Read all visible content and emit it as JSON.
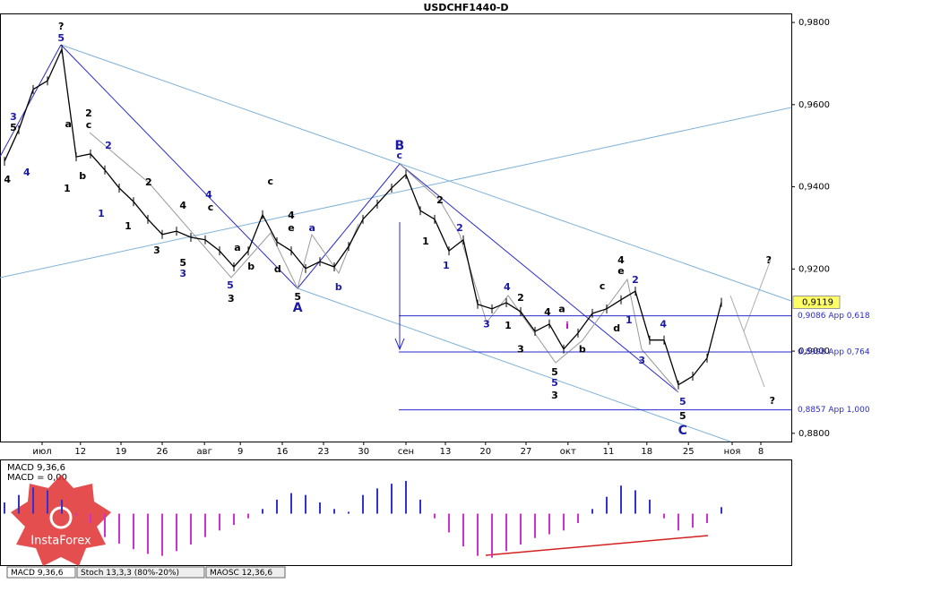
{
  "chart_data": [
    {
      "type": "line",
      "title": "USDCHF1440-D",
      "color": "#000000",
      "x": [
        0,
        2,
        4,
        6,
        8,
        10,
        12,
        14,
        16,
        18,
        20,
        22,
        24,
        26,
        28,
        30,
        32,
        34,
        36,
        38,
        40,
        42,
        44,
        46,
        48,
        50,
        52,
        54,
        56,
        58,
        60,
        62,
        64,
        66,
        68,
        70,
        72,
        74,
        76,
        78,
        80,
        82,
        84,
        86,
        88,
        90,
        92,
        94,
        96,
        98,
        100
      ],
      "values": [
        0.9462,
        0.9539,
        0.9637,
        0.9658,
        0.9735,
        0.9473,
        0.948,
        0.9441,
        0.9397,
        0.9364,
        0.9321,
        0.9284,
        0.9292,
        0.9277,
        0.9271,
        0.9244,
        0.9205,
        0.9244,
        0.9332,
        0.9266,
        0.9244,
        0.9201,
        0.9218,
        0.9205,
        0.9255,
        0.9321,
        0.9358,
        0.9397,
        0.943,
        0.9342,
        0.9321,
        0.9244,
        0.9271,
        0.9114,
        0.9103,
        0.9118,
        0.9096,
        0.9048,
        0.9066,
        0.9005,
        0.9044,
        0.9092,
        0.9103,
        0.9125,
        0.9146,
        0.9027,
        0.9027,
        0.8918,
        0.8939,
        0.8983,
        0.9119
      ],
      "xlim": [
        -0.625,
        109.75
      ],
      "ylim": [
        0.878,
        0.9822
      ],
      "xticks": [
        {
          "value": 5.25,
          "label": "июл"
        },
        {
          "value": 10.6,
          "label": "12"
        },
        {
          "value": 16.25,
          "label": "19"
        },
        {
          "value": 22,
          "label": "26"
        },
        {
          "value": 27.9,
          "label": "авг"
        },
        {
          "value": 32.9,
          "label": "9"
        },
        {
          "value": 38.75,
          "label": "16"
        },
        {
          "value": 44.5,
          "label": "23"
        },
        {
          "value": 50.1,
          "label": "30"
        },
        {
          "value": 56,
          "label": "сен"
        },
        {
          "value": 61.5,
          "label": "13"
        },
        {
          "value": 67.1,
          "label": "20"
        },
        {
          "value": 72.75,
          "label": "27"
        },
        {
          "value": 78.6,
          "label": "окт"
        },
        {
          "value": 84.25,
          "label": "11"
        },
        {
          "value": 89.6,
          "label": "18"
        },
        {
          "value": 95.4,
          "label": "25"
        },
        {
          "value": 101.5,
          "label": "ноя"
        },
        {
          "value": 105.5,
          "label": "8"
        }
      ],
      "yticks": [
        {
          "value": 0.98,
          "label": "0,9800"
        },
        {
          "value": 0.96,
          "label": "0,9600"
        },
        {
          "value": 0.94,
          "label": "0,9400"
        },
        {
          "value": 0.92,
          "label": "0,9200"
        },
        {
          "value": 0.9,
          "label": "0,9000"
        },
        {
          "value": 0.88,
          "label": "0,8800"
        }
      ],
      "last_price": {
        "value": 0.9119,
        "label": "0,9119"
      },
      "levels": [
        {
          "x": 55,
          "value": 0.9086,
          "label": "0,9086 App 0,618"
        },
        {
          "x": 55,
          "value": 0.8998,
          "label": "0,8998 App 0,764"
        },
        {
          "x": 55,
          "value": 0.8857,
          "label": "0,8857 App 1,000"
        }
      ],
      "annotations": [
        {
          "text": "?",
          "x": 7.9,
          "y": 0.9789,
          "color": "#000000"
        },
        {
          "text": "5",
          "x": 7.9,
          "y": 0.9761,
          "color": "#1a1aa6"
        },
        {
          "text": "3",
          "x": 1.25,
          "y": 0.9569,
          "color": "#1a1aa6"
        },
        {
          "text": "5",
          "x": 1.25,
          "y": 0.9543,
          "color": "#000000"
        },
        {
          "text": "4",
          "x": 0.4,
          "y": 0.9417,
          "color": "#000000"
        },
        {
          "text": "4",
          "x": 3.1,
          "y": 0.9434,
          "color": "#1a1aa6"
        },
        {
          "text": "2",
          "x": 11.75,
          "y": 0.9578,
          "color": "#000000"
        },
        {
          "text": "c",
          "x": 11.75,
          "y": 0.9549,
          "color": "#000000"
        },
        {
          "text": "a",
          "x": 8.9,
          "y": 0.9552,
          "color": "#000000"
        },
        {
          "text": "2",
          "x": 14.5,
          "y": 0.9499,
          "color": "#1a1aa6"
        },
        {
          "text": "b",
          "x": 10.9,
          "y": 0.9425,
          "color": "#000000"
        },
        {
          "text": "1",
          "x": 8.75,
          "y": 0.9395,
          "color": "#000000"
        },
        {
          "text": "1",
          "x": 13.5,
          "y": 0.9334,
          "color": "#1a1aa6"
        },
        {
          "text": "2",
          "x": 20.1,
          "y": 0.941,
          "color": "#000000"
        },
        {
          "text": "1",
          "x": 17.25,
          "y": 0.9303,
          "color": "#000000"
        },
        {
          "text": "4",
          "x": 24.9,
          "y": 0.9353,
          "color": "#000000"
        },
        {
          "text": "4",
          "x": 28.5,
          "y": 0.9379,
          "color": "#1a1aa6"
        },
        {
          "text": "c",
          "x": 28.75,
          "y": 0.9349,
          "color": "#000000"
        },
        {
          "text": "3",
          "x": 21.25,
          "y": 0.9244,
          "color": "#000000"
        },
        {
          "text": "5",
          "x": 24.9,
          "y": 0.9214,
          "color": "#000000"
        },
        {
          "text": "3",
          "x": 24.9,
          "y": 0.9188,
          "color": "#1a1aa6"
        },
        {
          "text": "a",
          "x": 32.5,
          "y": 0.9251,
          "color": "#000000"
        },
        {
          "text": "b",
          "x": 34.4,
          "y": 0.9205,
          "color": "#000000"
        },
        {
          "text": "5",
          "x": 31.5,
          "y": 0.9159,
          "color": "#1a1aa6"
        },
        {
          "text": "3",
          "x": 31.6,
          "y": 0.9127,
          "color": "#000000"
        },
        {
          "text": "c",
          "x": 37.1,
          "y": 0.9412,
          "color": "#000000"
        },
        {
          "text": "4",
          "x": 40,
          "y": 0.9329,
          "color": "#000000"
        },
        {
          "text": "e",
          "x": 40,
          "y": 0.9299,
          "color": "#000000"
        },
        {
          "text": "a",
          "x": 42.9,
          "y": 0.9299,
          "color": "#1a1aa6"
        },
        {
          "text": "d",
          "x": 38.1,
          "y": 0.9199,
          "color": "#000000"
        },
        {
          "text": "5",
          "x": 40.9,
          "y": 0.9131,
          "color": "#000000"
        },
        {
          "text": "A",
          "x": 40.9,
          "y": 0.9105,
          "color": "#1a1aa6"
        },
        {
          "text": "b",
          "x": 46.6,
          "y": 0.9155,
          "color": "#1a1aa6"
        },
        {
          "text": "B",
          "x": 55.1,
          "y": 0.9499,
          "color": "#1a1aa6"
        },
        {
          "text": "c",
          "x": 55.1,
          "y": 0.9475,
          "color": "#1a1aa6"
        },
        {
          "text": "2",
          "x": 60.75,
          "y": 0.9366,
          "color": "#000000"
        },
        {
          "text": "2",
          "x": 63.5,
          "y": 0.9299,
          "color": "#1a1aa6"
        },
        {
          "text": "1",
          "x": 58.75,
          "y": 0.9266,
          "color": "#000000"
        },
        {
          "text": "1",
          "x": 61.6,
          "y": 0.9207,
          "color": "#1a1aa6"
        },
        {
          "text": "4",
          "x": 70.1,
          "y": 0.9155,
          "color": "#1a1aa6"
        },
        {
          "text": "2",
          "x": 72,
          "y": 0.9129,
          "color": "#000000"
        },
        {
          "text": "3",
          "x": 67.25,
          "y": 0.9064,
          "color": "#1a1aa6"
        },
        {
          "text": "1",
          "x": 70.25,
          "y": 0.9061,
          "color": "#000000"
        },
        {
          "text": "3",
          "x": 72,
          "y": 0.9003,
          "color": "#000000"
        },
        {
          "text": "4",
          "x": 75.75,
          "y": 0.9094,
          "color": "#000000"
        },
        {
          "text": "a",
          "x": 77.75,
          "y": 0.9101,
          "color": "#000000"
        },
        {
          "text": "i",
          "x": 78.5,
          "y": 0.9061,
          "color": "#cc00cc"
        },
        {
          "text": "b",
          "x": 80.6,
          "y": 0.9003,
          "color": "#000000"
        },
        {
          "text": "5",
          "x": 76.75,
          "y": 0.8948,
          "color": "#000000"
        },
        {
          "text": "5",
          "x": 76.75,
          "y": 0.8922,
          "color": "#1a1aa6"
        },
        {
          "text": "3",
          "x": 76.75,
          "y": 0.8891,
          "color": "#000000"
        },
        {
          "text": "c",
          "x": 83.4,
          "y": 0.9157,
          "color": "#000000"
        },
        {
          "text": "4",
          "x": 86,
          "y": 0.922,
          "color": "#000000"
        },
        {
          "text": "e",
          "x": 86,
          "y": 0.9194,
          "color": "#000000"
        },
        {
          "text": "2",
          "x": 88,
          "y": 0.9172,
          "color": "#1a1aa6"
        },
        {
          "text": "d",
          "x": 85.4,
          "y": 0.9055,
          "color": "#000000"
        },
        {
          "text": "1",
          "x": 87.1,
          "y": 0.9074,
          "color": "#1a1aa6"
        },
        {
          "text": "4",
          "x": 91.9,
          "y": 0.9064,
          "color": "#1a1aa6"
        },
        {
          "text": "3",
          "x": 88.9,
          "y": 0.8976,
          "color": "#1a1aa6"
        },
        {
          "text": "5",
          "x": 94.6,
          "y": 0.8876,
          "color": "#1a1aa6"
        },
        {
          "text": "5",
          "x": 94.6,
          "y": 0.8841,
          "color": "#000000"
        },
        {
          "text": "C",
          "x": 94.6,
          "y": 0.8806,
          "color": "#1a1aa6"
        },
        {
          "text": "?",
          "x": 106.6,
          "y": 0.922,
          "color": "#000000"
        },
        {
          "text": "?",
          "x": 107.1,
          "y": 0.8878,
          "color": "#000000"
        }
      ]
    },
    {
      "type": "bar",
      "title": "MACD 9,36,6",
      "subtitle": "MACD = 0,00",
      "x": [
        0,
        2,
        4,
        6,
        8,
        10,
        12,
        14,
        16,
        18,
        20,
        22,
        24,
        26,
        28,
        30,
        32,
        34,
        36,
        38,
        40,
        42,
        44,
        46,
        48,
        50,
        52,
        54,
        56,
        58,
        60,
        62,
        64,
        66,
        68,
        70,
        72,
        74,
        76,
        78,
        80,
        82,
        84,
        86,
        88,
        90,
        92,
        94,
        96,
        98,
        100
      ],
      "values": [
        0.0012,
        0.002,
        0.0028,
        0.0025,
        0.0015,
        -0.0002,
        -0.001,
        -0.0025,
        -0.0032,
        -0.0038,
        -0.0043,
        -0.0045,
        -0.004,
        -0.0033,
        -0.0025,
        -0.0018,
        -0.0012,
        -0.0005,
        0.0005,
        0.0015,
        0.0022,
        0.002,
        0.0012,
        0.0005,
        0.0002,
        0.002,
        0.0027,
        0.0032,
        0.0035,
        0.0015,
        -0.0005,
        -0.002,
        -0.0035,
        -0.0045,
        -0.0047,
        -0.004,
        -0.0033,
        -0.0026,
        -0.0022,
        -0.0018,
        -0.001,
        0.0005,
        0.0018,
        0.003,
        0.0025,
        0.0015,
        -0.0005,
        -0.0018,
        -0.0015,
        -0.001,
        0.0007
      ],
      "positive_color": "#3333cc",
      "negative_color": "#cc33cc",
      "xlim": [
        -0.625,
        109.75
      ],
      "ylim": [
        -0.0055,
        0.0057
      ]
    }
  ],
  "tabs": [
    "MACD 9,36,6",
    "Stoch 13,3,3 (80%-20%)",
    "MAOSC 12,36,6"
  ],
  "watermark": "InstaForex"
}
